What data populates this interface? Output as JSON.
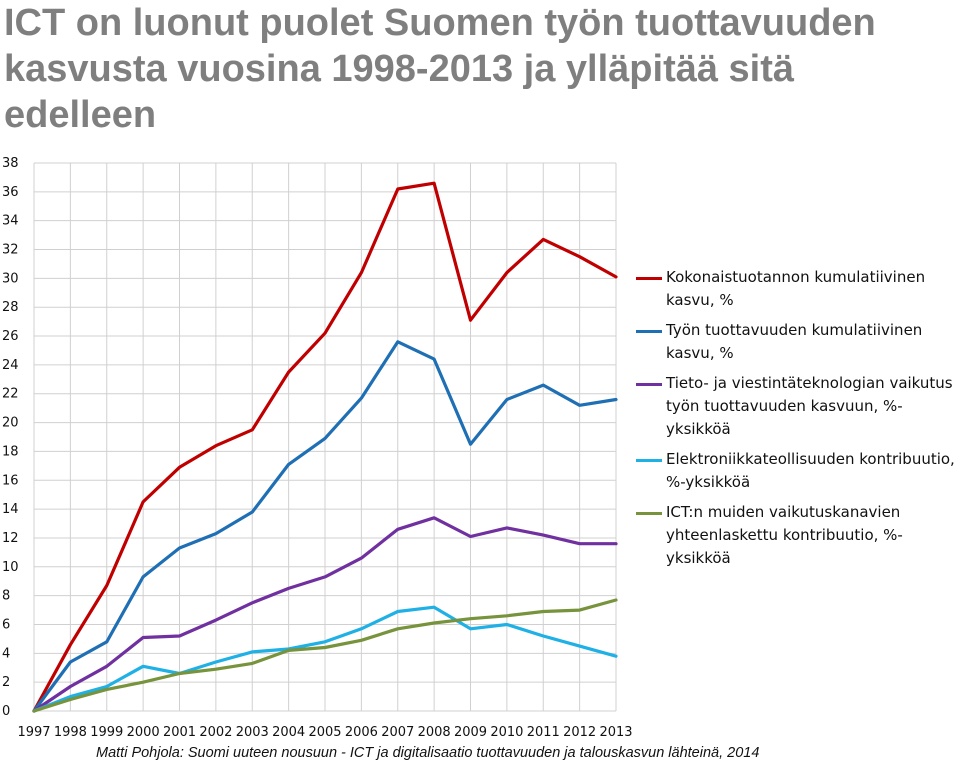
{
  "title": {
    "line1": "ICT on luonut puolet Suomen työn tuottavuuden",
    "line2": "kasvusta vuosina 1998-2013 ja ylläpitää sitä",
    "line3": "edelleen"
  },
  "footer": "Matti Pohjola: Suomi uuteen nousuun - ICT ja digitalisaatio tuottavuuden ja talouskasvun lähteinä, 2014",
  "chart_data": {
    "type": "line",
    "x": [
      "1997",
      "1998",
      "1999",
      "2000",
      "2001",
      "2002",
      "2003",
      "2004",
      "2005",
      "2006",
      "2007",
      "2008",
      "2009",
      "2010",
      "2011",
      "2012",
      "2013"
    ],
    "ylim": [
      0,
      38
    ],
    "yticks": [
      0,
      2,
      4,
      6,
      8,
      10,
      12,
      14,
      16,
      18,
      20,
      22,
      24,
      26,
      28,
      30,
      32,
      34,
      36,
      38
    ],
    "grid": true,
    "legend_position": "right",
    "series": [
      {
        "name": "Kokonaistuotannon kumulatiivinen kasvu, %",
        "color": "#c00000",
        "values": [
          0,
          4.6,
          8.7,
          14.5,
          16.9,
          18.4,
          19.5,
          23.5,
          26.2,
          30.4,
          36.2,
          36.6,
          27.1,
          30.4,
          32.7,
          31.5,
          30.1
        ]
      },
      {
        "name": "Työn tuottavuuden kumulatiivinen kasvu, %",
        "color": "#1f6fb5",
        "values": [
          0,
          3.4,
          4.8,
          9.3,
          11.3,
          12.3,
          13.8,
          17.1,
          18.9,
          21.7,
          25.6,
          24.4,
          18.5,
          21.6,
          22.6,
          21.2,
          21.6
        ]
      },
      {
        "name": "Tieto- ja viestintäteknologian vaikutus työn tuottavuuden kasvuun, %-yksikköä",
        "color": "#7030a0",
        "values": [
          0,
          1.7,
          3.1,
          5.1,
          5.2,
          6.3,
          7.5,
          8.5,
          9.3,
          10.6,
          12.6,
          13.4,
          12.1,
          12.7,
          12.2,
          11.6,
          11.6
        ]
      },
      {
        "name": "Elektroniikkateollisuuden kontribuutio, %-yksikköä",
        "color": "#1fb0e6",
        "values": [
          0,
          1.0,
          1.7,
          3.1,
          2.6,
          3.4,
          4.1,
          4.3,
          4.8,
          5.7,
          6.9,
          7.2,
          5.7,
          6.0,
          5.2,
          4.5,
          3.8
        ]
      },
      {
        "name": "ICT:n muiden vaikutuskanavien yhteenlaskettu kontribuutio, %-yksikköä",
        "color": "#77933c",
        "values": [
          0,
          0.8,
          1.5,
          2.0,
          2.6,
          2.9,
          3.3,
          4.2,
          4.4,
          4.9,
          5.7,
          6.1,
          6.4,
          6.6,
          6.9,
          7.0,
          7.7
        ]
      }
    ]
  }
}
